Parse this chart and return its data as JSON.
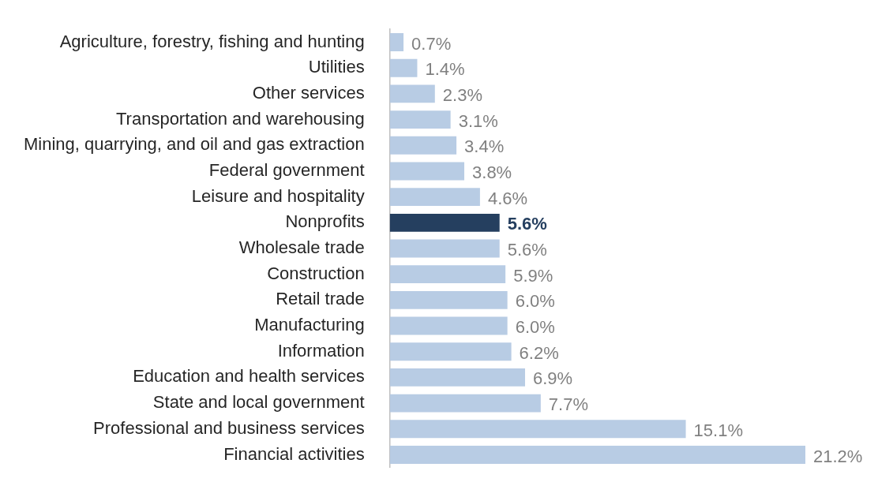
{
  "chart_data": {
    "type": "bar",
    "orientation": "horizontal",
    "categories": [
      "Agriculture, forestry, fishing and hunting",
      "Utilities",
      "Other services",
      "Transportation and warehousing",
      "Mining, quarrying, and oil and gas extraction",
      "Federal government",
      "Leisure and hospitality",
      "Nonprofits",
      "Wholesale trade",
      "Construction",
      "Retail trade",
      "Manufacturing",
      "Information",
      "Education and health services",
      "State and local government",
      "Professional and business services",
      "Financial activities"
    ],
    "values": [
      0.7,
      1.4,
      2.3,
      3.1,
      3.4,
      3.8,
      4.6,
      5.6,
      5.6,
      5.9,
      6.0,
      6.0,
      6.2,
      6.9,
      7.7,
      15.1,
      21.2
    ],
    "value_labels": [
      "0.7%",
      "1.4%",
      "2.3%",
      "3.1%",
      "3.4%",
      "3.8%",
      "4.6%",
      "5.6%",
      "5.6%",
      "5.9%",
      "6.0%",
      "6.0%",
      "6.2%",
      "6.9%",
      "7.7%",
      "15.1%",
      "21.2%"
    ],
    "colors": [
      "#b8cce4",
      "#b8cce4",
      "#b8cce4",
      "#b8cce4",
      "#b8cce4",
      "#b8cce4",
      "#b8cce4",
      "#253f5f",
      "#b8cce4",
      "#b8cce4",
      "#b8cce4",
      "#b8cce4",
      "#b8cce4",
      "#b8cce4",
      "#b8cce4",
      "#b8cce4",
      "#b8cce4"
    ],
    "xlim": [
      0,
      21.2
    ],
    "grid": false,
    "legend": false
  }
}
